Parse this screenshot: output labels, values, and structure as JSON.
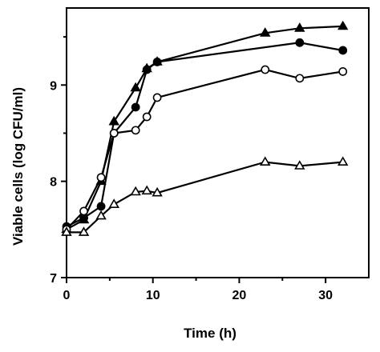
{
  "chart_data": {
    "type": "line",
    "xlabel": "Time (h)",
    "ylabel": "Viable cells (log CFU/ml)",
    "xlim": [
      0,
      35
    ],
    "ylim": [
      7,
      9.8
    ],
    "x_ticks": [
      0,
      10,
      20,
      30
    ],
    "y_ticks": [
      7,
      8,
      9
    ],
    "grid": false,
    "legend": "none",
    "series": [
      {
        "marker": "filled-triangle",
        "x": [
          0,
          2,
          4,
          5.5,
          8,
          9.3,
          10.5,
          23,
          27,
          32
        ],
        "y": [
          7.5,
          7.6,
          8.0,
          8.62,
          8.97,
          9.17,
          9.24,
          9.54,
          9.59,
          9.61
        ]
      },
      {
        "marker": "filled-circle",
        "x": [
          0,
          2,
          4,
          5.5,
          8,
          9.3,
          10.5,
          27,
          32
        ],
        "y": [
          7.53,
          7.62,
          7.74,
          8.5,
          8.77,
          9.16,
          9.24,
          9.44,
          9.36
        ]
      },
      {
        "marker": "open-circle",
        "x": [
          0,
          2,
          4,
          5.5,
          8,
          9.3,
          10.5,
          23,
          27,
          32
        ],
        "y": [
          7.5,
          7.69,
          8.04,
          8.5,
          8.53,
          8.67,
          8.87,
          9.16,
          9.07,
          9.14
        ]
      },
      {
        "marker": "open-triangle",
        "x": [
          0,
          2,
          4,
          5.5,
          8,
          9.3,
          10.5,
          23,
          27,
          32
        ],
        "y": [
          7.47,
          7.47,
          7.64,
          7.76,
          7.89,
          7.9,
          7.88,
          8.2,
          8.16,
          8.2
        ]
      }
    ]
  }
}
